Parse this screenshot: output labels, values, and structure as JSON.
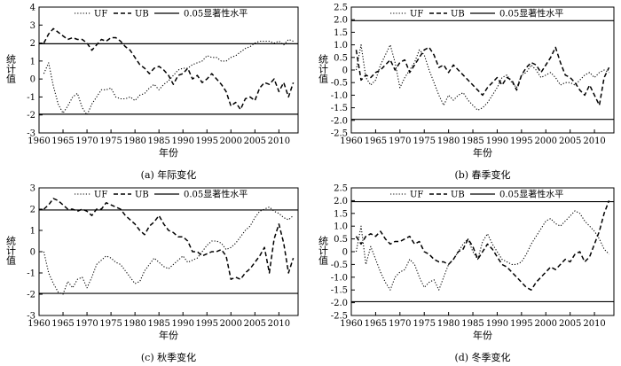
{
  "figure": {
    "ylabel": "统计值",
    "xlabel": "年份",
    "legend": [
      "UF",
      "UB",
      "0.05显著性水平"
    ]
  },
  "chart_data": [
    {
      "type": "line",
      "caption": "(a) 年际变化",
      "xlim": [
        1960,
        2014
      ],
      "ylim": [
        -3,
        4
      ],
      "xticks": [
        1960,
        1965,
        1970,
        1975,
        1980,
        1985,
        1990,
        1995,
        2000,
        2005,
        2010
      ],
      "yticks": [
        -3,
        -2,
        -1,
        0,
        1,
        2,
        3,
        4
      ],
      "ytick_labels": [
        "-3",
        "-2",
        "-1",
        "0",
        "1",
        "2",
        "3",
        "4"
      ],
      "significance": [
        1.96,
        -1.96
      ],
      "legend": [
        "UF",
        "UB",
        "0.05显著性水平"
      ],
      "legend_position": "top-right",
      "x": [
        1961,
        1962,
        1963,
        1964,
        1965,
        1966,
        1967,
        1968,
        1969,
        1970,
        1971,
        1972,
        1973,
        1974,
        1975,
        1976,
        1977,
        1978,
        1979,
        1980,
        1981,
        1982,
        1983,
        1984,
        1985,
        1986,
        1987,
        1988,
        1989,
        1990,
        1991,
        1992,
        1993,
        1994,
        1995,
        1996,
        1997,
        1998,
        1999,
        2000,
        2001,
        2002,
        2003,
        2004,
        2005,
        2006,
        2007,
        2008,
        2009,
        2010,
        2011,
        2012,
        2013
      ],
      "series": [
        {
          "name": "UF",
          "style": "dotted",
          "values": [
            0.3,
            0.9,
            -0.4,
            -1.4,
            -1.9,
            -1.5,
            -1.0,
            -0.8,
            -1.6,
            -2.0,
            -1.4,
            -1.0,
            -0.6,
            -0.6,
            -0.5,
            -1.0,
            -1.1,
            -1.1,
            -1.0,
            -1.2,
            -0.9,
            -0.8,
            -0.5,
            -0.3,
            -0.6,
            -0.3,
            -0.1,
            0.2,
            0.5,
            0.6,
            0.6,
            0.8,
            0.9,
            1.0,
            1.3,
            1.2,
            1.2,
            1.0,
            1.0,
            1.2,
            1.3,
            1.5,
            1.7,
            1.8,
            2.0,
            2.1,
            2.1,
            2.1,
            2.0,
            2.1,
            1.9,
            2.2,
            2.1
          ]
        },
        {
          "name": "UB",
          "style": "dashed",
          "values": [
            2.0,
            2.5,
            2.8,
            2.6,
            2.4,
            2.2,
            2.3,
            2.2,
            2.2,
            2.0,
            1.6,
            1.9,
            2.2,
            2.1,
            2.3,
            2.3,
            2.1,
            1.8,
            1.6,
            1.2,
            0.8,
            0.6,
            0.3,
            0.6,
            0.7,
            0.5,
            0.2,
            -0.3,
            0.2,
            0.3,
            0.6,
            0.0,
            0.2,
            -0.2,
            0.0,
            0.3,
            0.0,
            -0.3,
            -0.7,
            -1.5,
            -1.3,
            -1.7,
            -1.1,
            -1.0,
            -1.2,
            -0.5,
            -0.2,
            -0.3,
            0.0,
            -0.7,
            -0.2,
            -1.0,
            -0.2
          ]
        }
      ]
    },
    {
      "type": "line",
      "caption": "(b) 春季变化",
      "xlim": [
        1960,
        2014
      ],
      "ylim": [
        -2.5,
        2.5
      ],
      "xticks": [
        1960,
        1965,
        1970,
        1975,
        1980,
        1985,
        1990,
        1995,
        2000,
        2005,
        2010
      ],
      "yticks": [
        -2.5,
        -2.0,
        -1.5,
        -1.0,
        -0.5,
        0,
        0.5,
        1.0,
        1.5,
        2.0,
        2.5
      ],
      "ytick_labels": [
        "-2.5",
        "-2.0",
        "-1.5",
        "-1.0",
        "-0.5",
        "0",
        "0.5",
        "1.0",
        "1.5",
        "2.0",
        "2.5"
      ],
      "significance": [
        1.96,
        -1.96
      ],
      "legend": [
        "UF",
        "UB",
        "0.05显著性水平"
      ],
      "legend_position": "top-right",
      "x": [
        1961,
        1962,
        1963,
        1964,
        1965,
        1966,
        1967,
        1968,
        1969,
        1970,
        1971,
        1972,
        1973,
        1974,
        1975,
        1976,
        1977,
        1978,
        1979,
        1980,
        1981,
        1982,
        1983,
        1984,
        1985,
        1986,
        1987,
        1988,
        1989,
        1990,
        1991,
        1992,
        1993,
        1994,
        1995,
        1996,
        1997,
        1998,
        1999,
        2000,
        2001,
        2002,
        2003,
        2004,
        2005,
        2006,
        2007,
        2008,
        2009,
        2010,
        2011,
        2012,
        2013
      ],
      "series": [
        {
          "name": "UF",
          "style": "dotted",
          "values": [
            0.0,
            1.0,
            -0.3,
            -0.6,
            -0.4,
            0.2,
            0.6,
            1.0,
            0.3,
            -0.7,
            -0.3,
            0.0,
            0.3,
            0.8,
            0.6,
            0.0,
            -0.5,
            -1.0,
            -1.4,
            -1.0,
            -1.2,
            -1.0,
            -0.9,
            -1.2,
            -1.4,
            -1.6,
            -1.5,
            -1.3,
            -1.0,
            -0.7,
            -0.3,
            -0.2,
            -0.5,
            -0.7,
            -0.2,
            -0.1,
            0.2,
            0.0,
            -0.3,
            -0.2,
            -0.1,
            -0.3,
            -0.6,
            -0.5,
            -0.5,
            -0.6,
            -0.4,
            -0.2,
            -0.1,
            -0.3,
            -0.1,
            0.0,
            -0.1
          ]
        },
        {
          "name": "UB",
          "style": "dashed",
          "values": [
            0.8,
            -0.4,
            -0.2,
            -0.3,
            -0.1,
            0.0,
            0.2,
            0.4,
            0.0,
            0.3,
            0.4,
            -0.1,
            0.2,
            0.5,
            0.8,
            0.9,
            0.6,
            0.1,
            0.2,
            -0.1,
            0.2,
            0.0,
            -0.2,
            -0.4,
            -0.6,
            -0.8,
            -1.0,
            -0.7,
            -0.5,
            -0.3,
            -0.6,
            -0.3,
            -0.4,
            -0.8,
            -0.2,
            0.1,
            0.3,
            0.2,
            -0.1,
            0.2,
            0.5,
            0.9,
            0.3,
            -0.2,
            -0.3,
            -0.5,
            -0.8,
            -1.0,
            -0.6,
            -1.0,
            -1.4,
            -0.3,
            0.1
          ]
        }
      ]
    },
    {
      "type": "line",
      "caption": "(c) 秋季变化",
      "xlim": [
        1960,
        2014
      ],
      "ylim": [
        -3,
        3
      ],
      "xticks": [
        1960,
        1965,
        1970,
        1975,
        1980,
        1985,
        1990,
        1995,
        2000,
        2005,
        2010
      ],
      "yticks": [
        -3,
        -2,
        -1,
        0,
        1,
        2,
        3
      ],
      "ytick_labels": [
        "-3",
        "-2",
        "-1",
        "0",
        "1",
        "2",
        "3"
      ],
      "significance": [
        1.96,
        -1.96
      ],
      "legend": [
        "UF",
        "UB",
        "0.05显著性水平"
      ],
      "legend_position": "top-right",
      "x": [
        1961,
        1962,
        1963,
        1964,
        1965,
        1966,
        1967,
        1968,
        1969,
        1970,
        1971,
        1972,
        1973,
        1974,
        1975,
        1976,
        1977,
        1978,
        1979,
        1980,
        1981,
        1982,
        1983,
        1984,
        1985,
        1986,
        1987,
        1988,
        1989,
        1990,
        1991,
        1992,
        1993,
        1994,
        1995,
        1996,
        1997,
        1998,
        1999,
        2000,
        2001,
        2002,
        2003,
        2004,
        2005,
        2006,
        2007,
        2008,
        2009,
        2010,
        2011,
        2012,
        2013
      ],
      "series": [
        {
          "name": "UF",
          "style": "dotted",
          "values": [
            0.0,
            -1.0,
            -1.5,
            -1.9,
            -2.0,
            -1.4,
            -1.7,
            -1.3,
            -1.2,
            -1.7,
            -1.2,
            -0.6,
            -0.4,
            -0.2,
            -0.3,
            -0.5,
            -0.6,
            -0.9,
            -1.2,
            -1.5,
            -1.4,
            -0.9,
            -0.6,
            -0.3,
            -0.5,
            -0.7,
            -0.8,
            -0.6,
            -0.4,
            -0.2,
            -0.5,
            -0.4,
            -0.3,
            0.0,
            0.3,
            0.5,
            0.5,
            0.4,
            0.1,
            0.2,
            0.4,
            0.7,
            1.0,
            1.2,
            1.6,
            1.9,
            2.0,
            2.1,
            1.9,
            1.8,
            1.6,
            1.5,
            1.7
          ]
        },
        {
          "name": "UB",
          "style": "dashed",
          "values": [
            2.0,
            2.2,
            2.5,
            2.4,
            2.2,
            2.0,
            2.0,
            1.9,
            2.0,
            1.9,
            1.7,
            2.0,
            2.0,
            2.3,
            2.2,
            2.1,
            2.0,
            1.7,
            1.5,
            1.3,
            1.0,
            0.8,
            1.2,
            1.4,
            1.7,
            1.3,
            1.0,
            0.9,
            0.7,
            0.7,
            0.5,
            0.0,
            0.0,
            -0.2,
            -0.1,
            0.0,
            0.0,
            0.1,
            -0.2,
            -1.3,
            -1.2,
            -1.3,
            -1.0,
            -0.8,
            -0.5,
            -0.2,
            0.2,
            -1.0,
            0.6,
            1.3,
            0.4,
            -1.0,
            -0.3
          ]
        }
      ]
    },
    {
      "type": "line",
      "caption": "(d) 冬季变化",
      "xlim": [
        1960,
        2014
      ],
      "ylim": [
        -2.5,
        2.5
      ],
      "xticks": [
        1960,
        1965,
        1970,
        1975,
        1980,
        1985,
        1990,
        1995,
        2000,
        2005,
        2010
      ],
      "yticks": [
        -2.5,
        -2.0,
        -1.5,
        -1.0,
        -0.5,
        0,
        0.5,
        1.0,
        1.5,
        2.0,
        2.5
      ],
      "ytick_labels": [
        "-2.5",
        "-2.0",
        "-1.5",
        "-1.0",
        "-0.5",
        "0",
        "0.5",
        "1.0",
        "1.5",
        "2.0",
        "2.5"
      ],
      "significance": [
        1.96,
        -1.96
      ],
      "legend": [
        "UF",
        "UB",
        "0.05显著性水平"
      ],
      "legend_position": "top-right",
      "x": [
        1961,
        1962,
        1963,
        1964,
        1965,
        1966,
        1967,
        1968,
        1969,
        1970,
        1971,
        1972,
        1973,
        1974,
        1975,
        1976,
        1977,
        1978,
        1979,
        1980,
        1981,
        1982,
        1983,
        1984,
        1985,
        1986,
        1987,
        1988,
        1989,
        1990,
        1991,
        1992,
        1993,
        1994,
        1995,
        1996,
        1997,
        1998,
        1999,
        2000,
        2001,
        2002,
        2003,
        2004,
        2005,
        2006,
        2007,
        2008,
        2009,
        2010,
        2011,
        2012,
        2013
      ],
      "series": [
        {
          "name": "UF",
          "style": "dotted",
          "values": [
            0.0,
            1.0,
            -0.5,
            0.2,
            -0.3,
            -0.8,
            -1.2,
            -1.5,
            -1.0,
            -0.8,
            -0.7,
            -0.3,
            -0.5,
            -1.0,
            -1.4,
            -1.2,
            -1.1,
            -1.5,
            -1.0,
            -0.5,
            -0.3,
            0.0,
            0.3,
            0.5,
            0.0,
            -0.3,
            0.4,
            0.7,
            0.3,
            0.0,
            -0.3,
            -0.4,
            -0.5,
            -0.5,
            -0.4,
            -0.1,
            0.3,
            0.6,
            0.9,
            1.2,
            1.3,
            1.1,
            1.0,
            1.2,
            1.4,
            1.6,
            1.5,
            1.2,
            1.0,
            0.8,
            0.5,
            0.1,
            -0.1
          ]
        },
        {
          "name": "UB",
          "style": "dashed",
          "values": [
            0.6,
            0.3,
            0.6,
            0.7,
            0.6,
            0.8,
            0.5,
            0.3,
            0.4,
            0.4,
            0.5,
            0.6,
            0.3,
            0.4,
            0.0,
            -0.1,
            -0.3,
            -0.4,
            -0.4,
            -0.5,
            -0.3,
            0.0,
            0.1,
            0.5,
            0.2,
            -0.3,
            0.0,
            0.3,
            0.1,
            -0.2,
            -0.5,
            -0.6,
            -0.8,
            -1.0,
            -1.2,
            -1.4,
            -1.5,
            -1.2,
            -1.0,
            -0.8,
            -0.6,
            -0.7,
            -0.5,
            -0.3,
            -0.4,
            -0.1,
            0.0,
            -0.4,
            -0.2,
            0.3,
            0.8,
            1.5,
            2.0
          ]
        }
      ]
    }
  ]
}
